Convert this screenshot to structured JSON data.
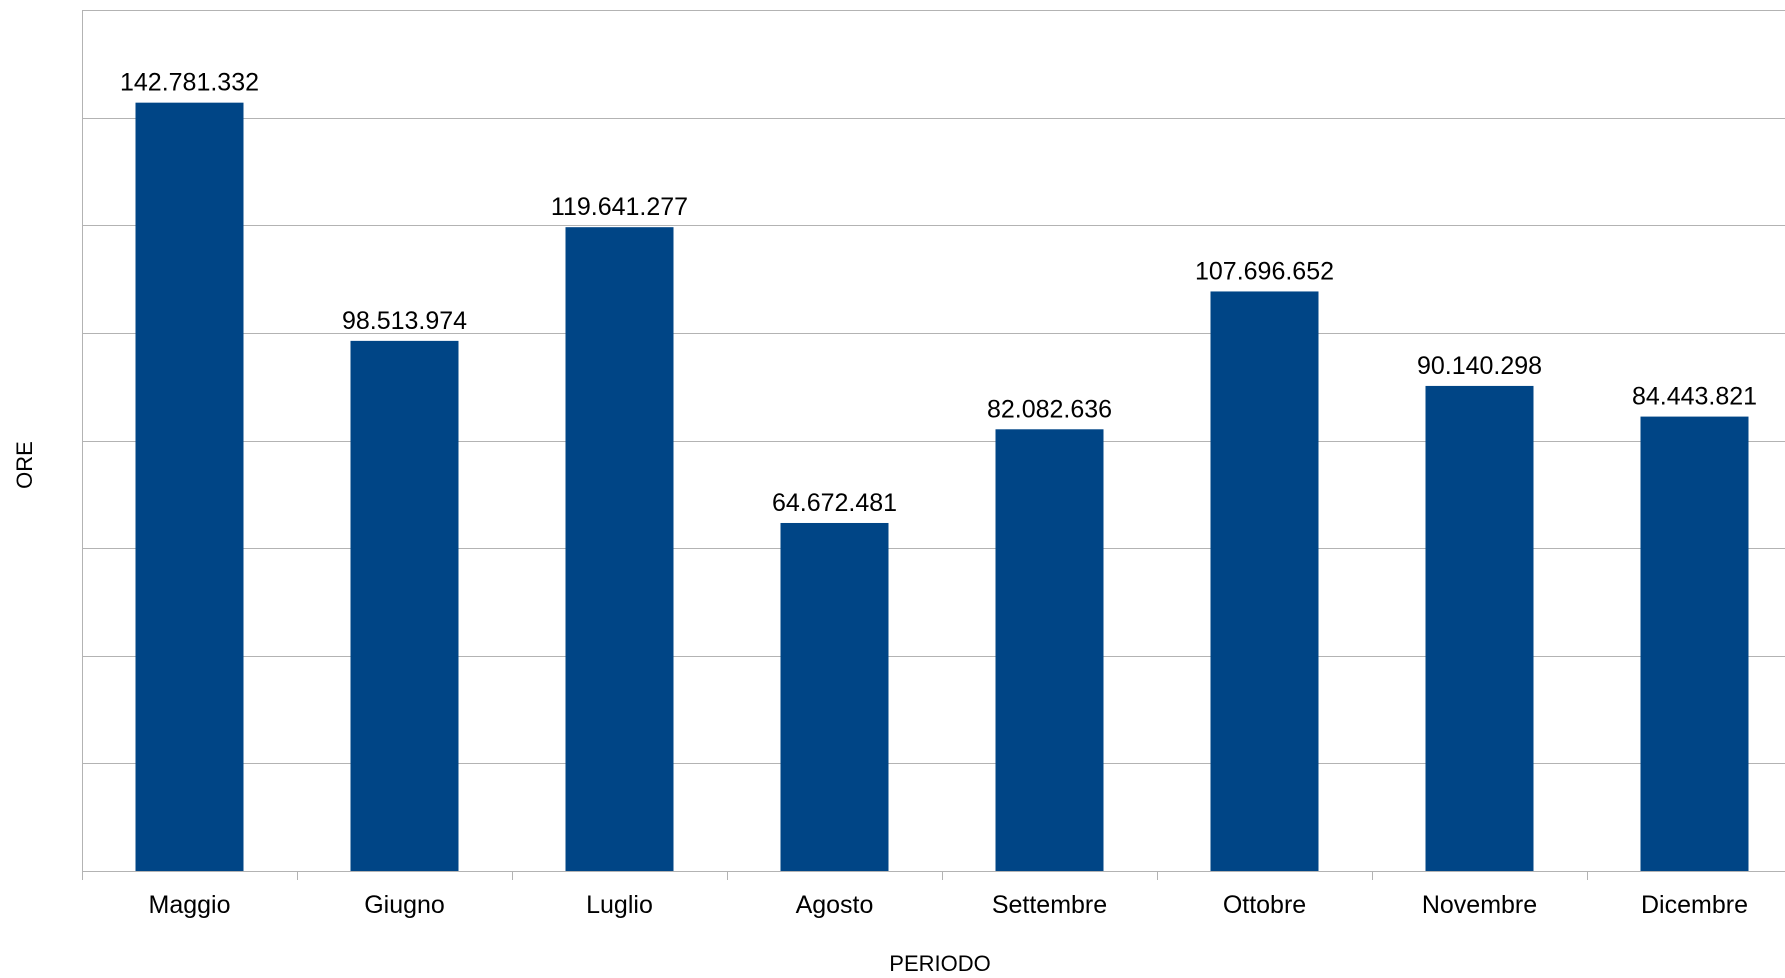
{
  "chart_data": {
    "type": "bar",
    "title": "",
    "xlabel": "PERIODO",
    "ylabel": "ORE",
    "categories": [
      "Maggio",
      "Giugno",
      "Luglio",
      "Agosto",
      "Settembre",
      "Ottobre",
      "Novembre",
      "Dicembre"
    ],
    "values": [
      142781332,
      98513974,
      119641277,
      64672481,
      82082636,
      107696652,
      90140298,
      84443821
    ],
    "value_labels": [
      "142.781.332",
      "98.513.974",
      "119.641.277",
      "64.672.481",
      "82.082.636",
      "107.696.652",
      "90.140.298",
      "84.443.821"
    ],
    "ylim": [
      0,
      160000000
    ],
    "y_gridline_step": 20000000,
    "y_tick_labels_visible": false,
    "grid": true,
    "legend": "none",
    "colors": {
      "bar": "#004586",
      "grid": "#b3b3b3",
      "axis": "#b3b3b3"
    }
  }
}
